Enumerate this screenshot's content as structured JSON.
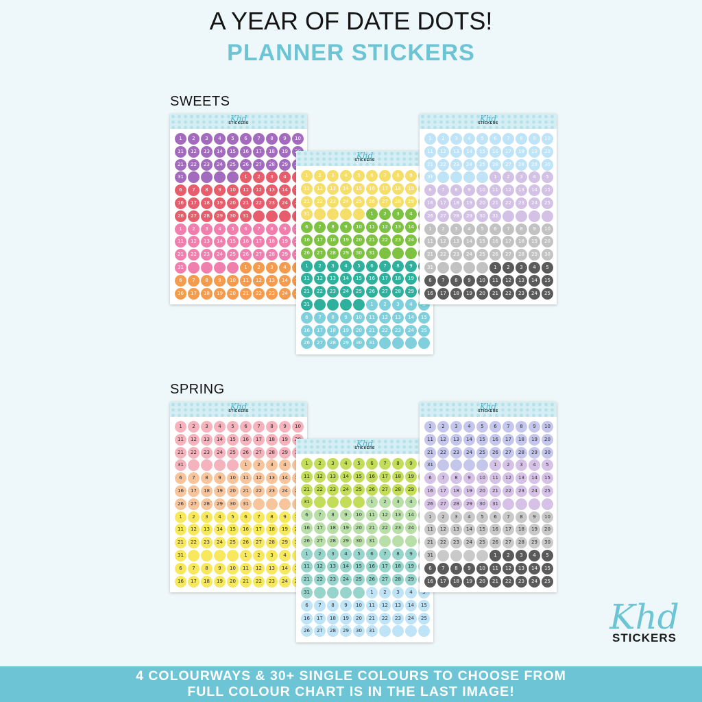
{
  "header": {
    "title": "A YEAR OF DATE DOTS!",
    "subtitle": "PLANNER STICKERS"
  },
  "sheet_logo": {
    "script": "Khd",
    "word": "STICKERS"
  },
  "sets": [
    {
      "label": "SWEETS",
      "sheets": [
        {
          "colors": [
            "#a26bbd",
            "#e85d6b",
            "#f07fae",
            "#f49b4d"
          ]
        },
        {
          "colors": [
            "#f5de6a",
            "#7ec242",
            "#2fb09c",
            "#7fd0dc"
          ]
        },
        {
          "colors": [
            "#bfe3f7",
            "#d3c2e6",
            "#c2c2c2",
            "#5a5a5a"
          ]
        }
      ]
    },
    {
      "label": "SPRING",
      "sheets": [
        {
          "colors": [
            "#f5b3bd",
            "#f7c49c",
            "#f7e85e",
            "#f7e85e"
          ]
        },
        {
          "colors": [
            "#c3dc5a",
            "#b9dfa9",
            "#96d4cc",
            "#bfe3f7"
          ]
        },
        {
          "colors": [
            "#c5c6ec",
            "#d6c2e6",
            "#c9c9c9",
            "#5a5a5a"
          ]
        }
      ]
    }
  ],
  "brand": {
    "script": "Khd",
    "word": "STICKERS"
  },
  "footer": {
    "line1": "4 COLOURWAYS & 30+ SINGLE COLOURS TO CHOOSE FROM",
    "line2": "FULL COLOUR CHART IS IN THE LAST IMAGE!"
  }
}
